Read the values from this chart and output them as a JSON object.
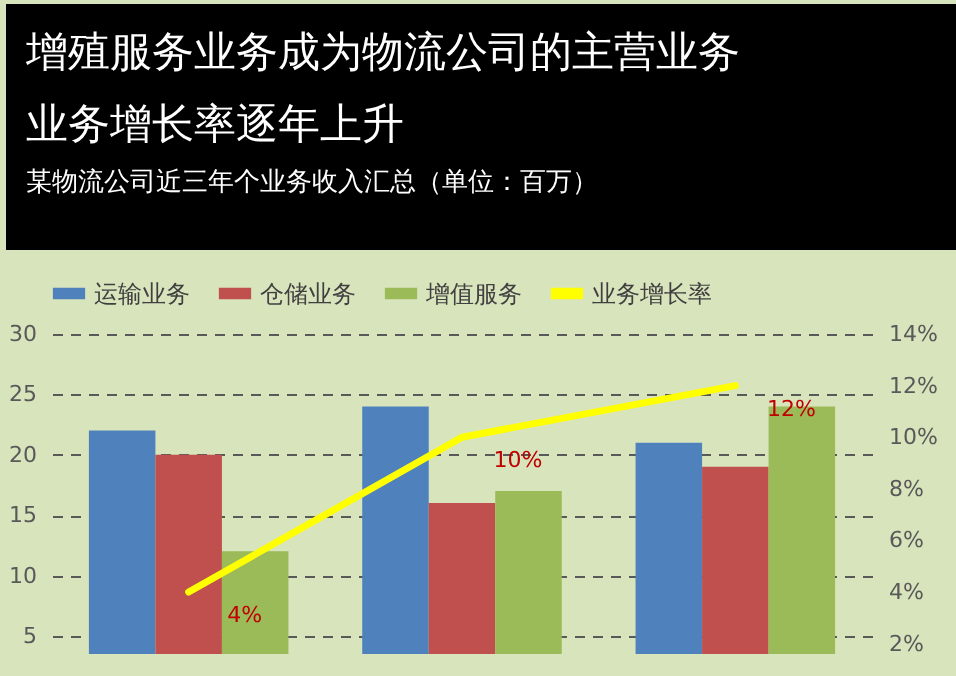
{
  "chart_data": {
    "type": "bar",
    "title": "增殖服务业务成为物流公司的主营业务业务增长率逐年上升",
    "subtitle": "某物流公司近三年个业务收入汇总（单位：百万）",
    "categories": [
      null,
      null,
      null
    ],
    "series": [
      {
        "name": "运输业务",
        "color": "#4f81bd",
        "values": [
          22,
          24,
          21
        ]
      },
      {
        "name": "仓储业务",
        "color": "#c0504d",
        "values": [
          20,
          16,
          19
        ]
      },
      {
        "name": "增值服务",
        "color": "#9bbb59",
        "values": [
          12,
          17,
          24
        ]
      },
      {
        "name": "业务增长率",
        "type": "line",
        "axis": "y2",
        "color": "#ffff00",
        "values": [
          4,
          10,
          12
        ],
        "value_labels": [
          "4%",
          "10%",
          "12%"
        ]
      }
    ],
    "ylim": [
      3.5,
      30
    ],
    "yticks": [
      5,
      10,
      15,
      20,
      25,
      30
    ],
    "y2lim": [
      1.6,
      14
    ],
    "y2ticks": [
      {
        "value": 2,
        "label": "2%"
      },
      {
        "value": 4,
        "label": "4%"
      },
      {
        "value": 6,
        "label": "6%"
      },
      {
        "value": 8,
        "label": "8%"
      },
      {
        "value": 10,
        "label": "10%"
      },
      {
        "value": 12,
        "label": "12%"
      },
      {
        "value": 14,
        "label": "14%"
      }
    ],
    "grid": "y",
    "legend": "top",
    "tick_labels": "y",
    "marker": "none"
  }
}
